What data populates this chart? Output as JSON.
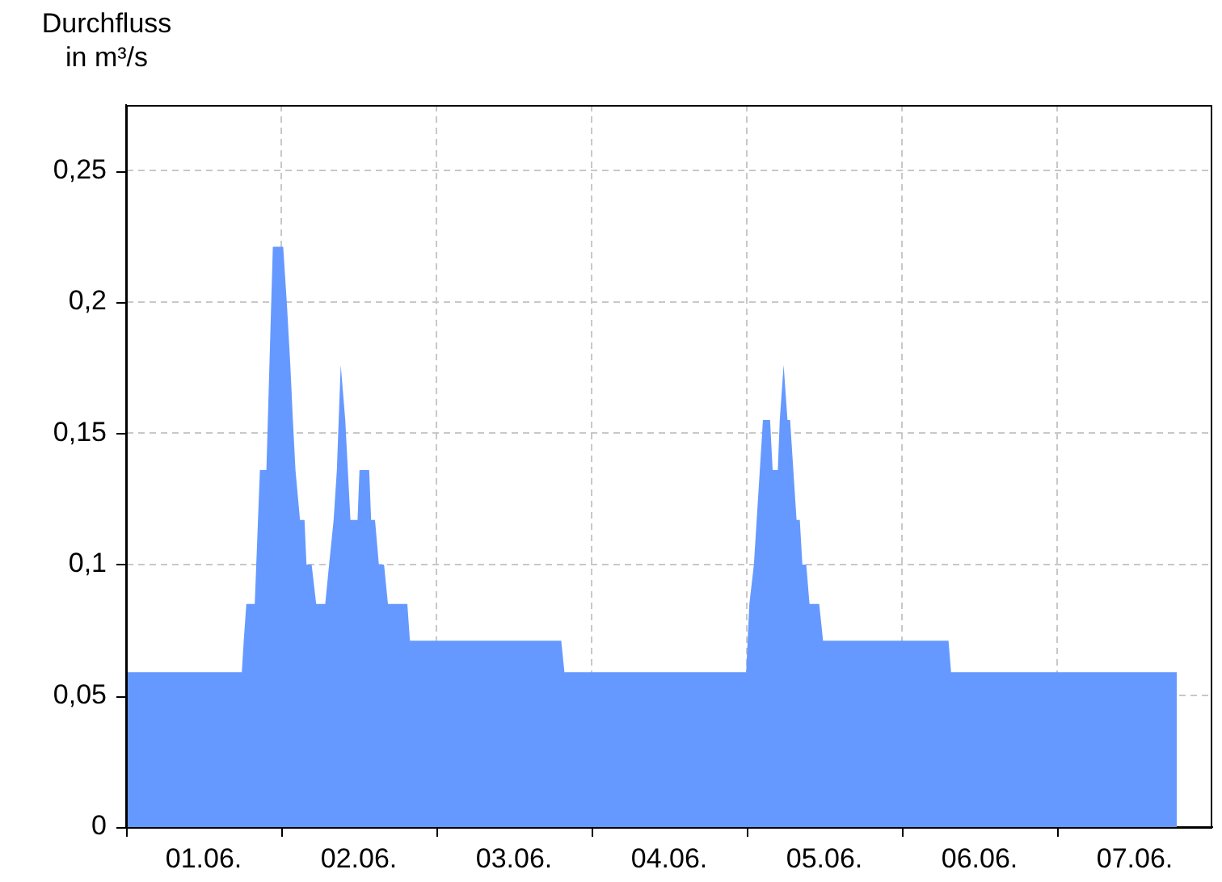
{
  "chart_data": {
    "type": "area",
    "ylabel": "Durchfluss in m³/s",
    "x": [
      "--06-01T00:00",
      "--06-01T17:54",
      "--06-01T18:12",
      "--06-01T18:36",
      "--06-01T19:54",
      "--06-01T20:42",
      "--06-01T21:42",
      "--06-01T22:42",
      "--06-02T00:18",
      "--06-02T00:54",
      "--06-02T01:24",
      "--06-02T01:48",
      "--06-02T02:12",
      "--06-02T02:54",
      "--06-02T03:36",
      "--06-02T03:54",
      "--06-02T04:42",
      "--06-02T05:24",
      "--06-02T06:48",
      "--06-02T07:24",
      "--06-02T08:06",
      "--06-02T08:36",
      "--06-02T09:12",
      "--06-02T09:54",
      "--06-02T10:18",
      "--06-02T10:42",
      "--06-02T11:48",
      "--06-02T12:06",
      "--06-02T13:36",
      "--06-02T13:54",
      "--06-02T14:30",
      "--06-02T15:06",
      "--06-02T15:54",
      "--06-02T16:30",
      "--06-02T19:30",
      "--06-02T19:54",
      "--06-03T19:18",
      "--06-03T19:48",
      "--06-04T23:54",
      "--06-05T00:24",
      "--06-05T01:06",
      "--06-05T02:30",
      "--06-05T03:36",
      "--06-05T04:00",
      "--06-05T04:48",
      "--06-05T05:06",
      "--06-05T05:42",
      "--06-05T06:18",
      "--06-05T06:42",
      "--06-05T07:42",
      "--06-05T08:12",
      "--06-05T08:36",
      "--06-05T09:12",
      "--06-05T09:42",
      "--06-05T11:12",
      "--06-05T11:48",
      "--06-06T07:12",
      "--06-06T07:36",
      "--06-07T18:30"
    ],
    "series": [
      {
        "color": "#6699ff",
        "values": [
          0.059,
          0.059,
          0.071,
          0.085,
          0.085,
          0.136,
          0.136,
          0.221,
          0.221,
          0.198,
          0.176,
          0.155,
          0.136,
          0.117,
          0.117,
          0.1,
          0.1,
          0.085,
          0.085,
          0.1,
          0.117,
          0.136,
          0.176,
          0.155,
          0.136,
          0.117,
          0.117,
          0.136,
          0.136,
          0.117,
          0.117,
          0.1,
          0.1,
          0.085,
          0.085,
          0.071,
          0.071,
          0.059,
          0.059,
          0.085,
          0.1,
          0.155,
          0.155,
          0.136,
          0.136,
          0.155,
          0.176,
          0.155,
          0.155,
          0.117,
          0.117,
          0.1,
          0.1,
          0.085,
          0.085,
          0.071,
          0.071,
          0.059,
          0.059
        ]
      }
    ],
    "xlim": [
      "--06-01T00:00",
      "--06-08T00:00"
    ],
    "xticks": [
      {
        "value": "--06-01T00:00",
        "label": null
      },
      {
        "value": "--06-01T12:00",
        "label": "01.06."
      },
      {
        "value": "--06-02T00:00",
        "label": null
      },
      {
        "value": "--06-02T12:00",
        "label": "02.06."
      },
      {
        "value": "--06-03T00:00",
        "label": null
      },
      {
        "value": "--06-03T12:00",
        "label": "03.06."
      },
      {
        "value": "--06-04T00:00",
        "label": null
      },
      {
        "value": "--06-04T12:00",
        "label": "04.06."
      },
      {
        "value": "--06-05T00:00",
        "label": null
      },
      {
        "value": "--06-05T12:00",
        "label": "05.06."
      },
      {
        "value": "--06-06T00:00",
        "label": null
      },
      {
        "value": "--06-06T12:00",
        "label": "06.06."
      },
      {
        "value": "--06-07T00:00",
        "label": null
      },
      {
        "value": "--06-07T12:00",
        "label": "07.06."
      }
    ],
    "ylim": [
      0,
      0.275
    ],
    "yticks": [
      0,
      {
        "value": 0.05,
        "label": "0,05"
      },
      {
        "value": 0.1,
        "label": "0,1"
      },
      {
        "value": 0.15,
        "label": "0,15"
      },
      {
        "value": 0.2,
        "label": "0,2"
      },
      {
        "value": 0.25,
        "label": "0,25"
      }
    ],
    "grid": true,
    "legend": false,
    "marker": "none"
  }
}
